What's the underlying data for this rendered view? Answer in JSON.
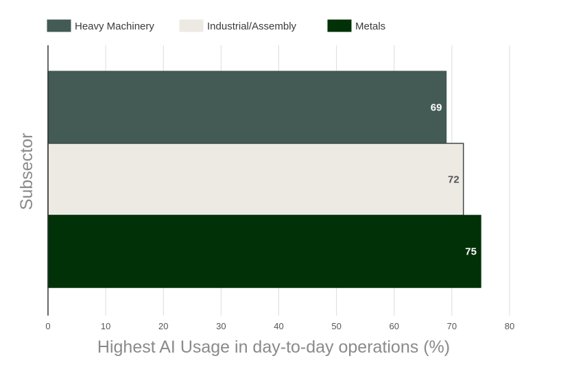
{
  "chart_data": {
    "type": "bar",
    "orientation": "horizontal",
    "categories": [
      ""
    ],
    "series": [
      {
        "name": "Heavy Machinery",
        "values": [
          69
        ],
        "color": "#435a55",
        "label_color": "#ffffff",
        "stroke": "#435a55"
      },
      {
        "name": "Industrial/Assembly",
        "values": [
          72
        ],
        "color": "#edeae4",
        "label_color": "#555555",
        "stroke": "#3f4a46"
      },
      {
        "name": "Metals",
        "values": [
          75
        ],
        "color": "#003107",
        "label_color": "#ffffff",
        "stroke": "#003107"
      }
    ],
    "xlabel": "Highest AI Usage in day-to-day operations (%)",
    "ylabel": "Subsector",
    "xlim": [
      0,
      80
    ],
    "xticks": [
      0,
      10,
      20,
      30,
      40,
      50,
      60,
      70,
      80
    ],
    "grid": true,
    "legend": "top-left",
    "data_labels": true
  }
}
